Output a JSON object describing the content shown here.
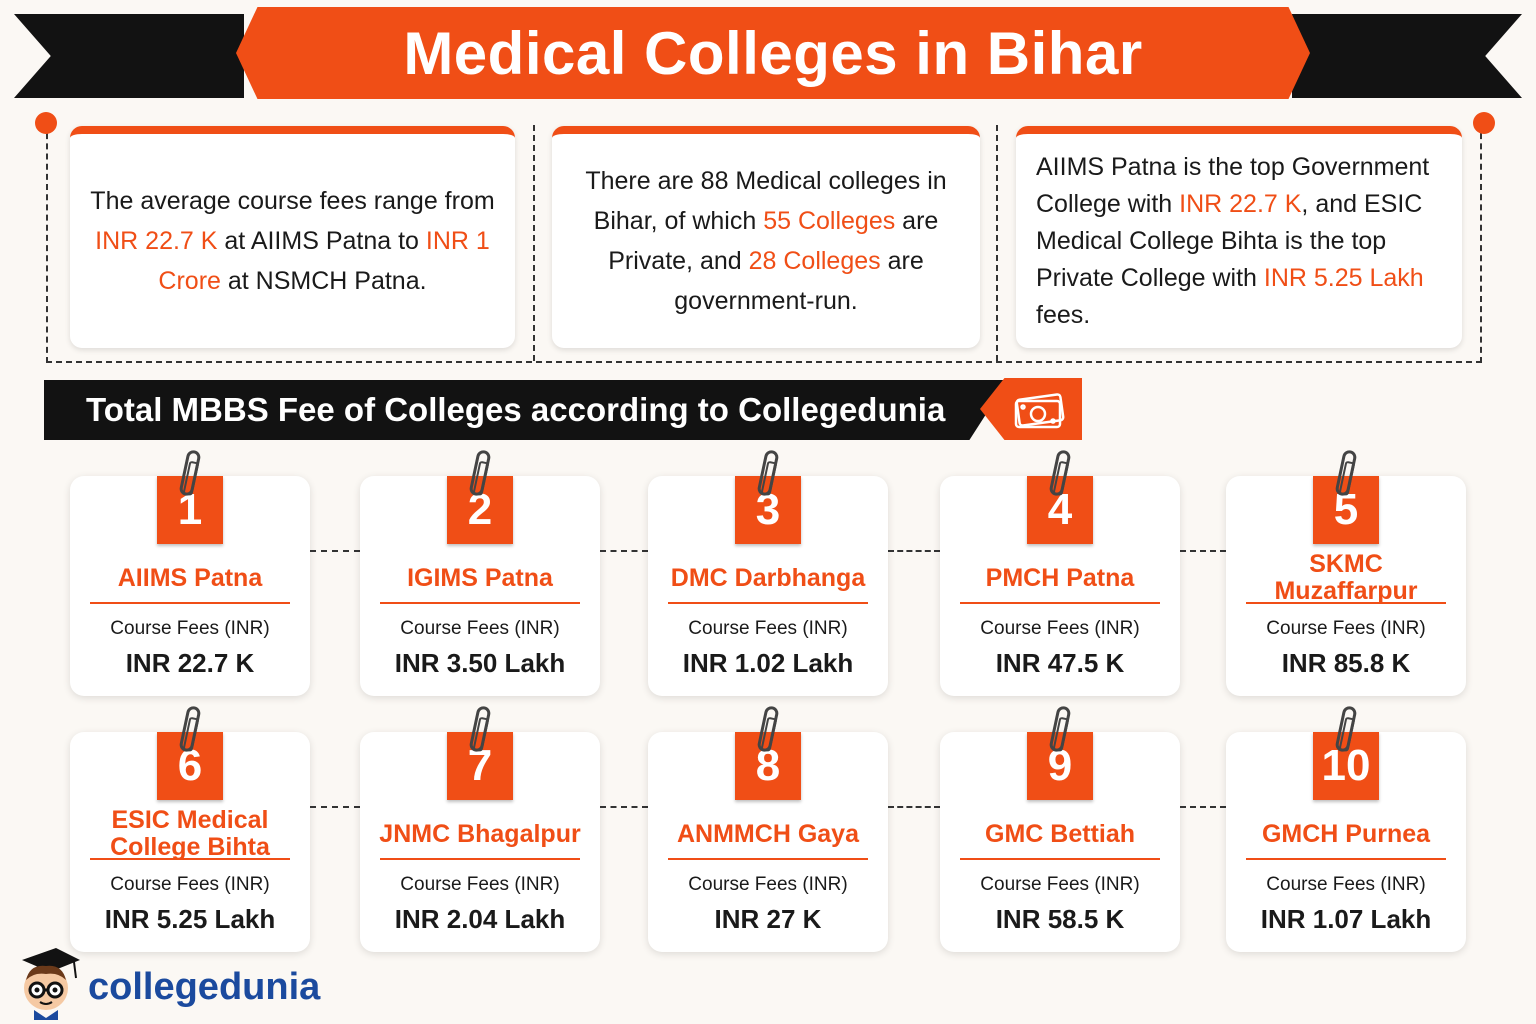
{
  "title": "Medical Colleges in Bihar",
  "info_cards": [
    {
      "segments": [
        {
          "text": "The average course fees range from ",
          "highlight": false
        },
        {
          "text": "INR 22.7 K",
          "highlight": true
        },
        {
          "text": " at AIIMS Patna to ",
          "highlight": false
        },
        {
          "text": "INR 1 Crore",
          "highlight": true
        },
        {
          "text": " at NSMCH Patna.",
          "highlight": false
        }
      ]
    },
    {
      "segments": [
        {
          "text": "There are 88 Medical colleges in Bihar, of which ",
          "highlight": false
        },
        {
          "text": "55 Colleges",
          "highlight": true
        },
        {
          "text": " are Private, and ",
          "highlight": false
        },
        {
          "text": "28 Colleges",
          "highlight": true
        },
        {
          "text": " are government-run.",
          "highlight": false
        }
      ]
    },
    {
      "segments": [
        {
          "text": "AIIMS Patna is the top Government College with ",
          "highlight": false
        },
        {
          "text": "INR 22.7 K",
          "highlight": true
        },
        {
          "text": ", and ESIC Medical College Bihta is the top Private College with ",
          "highlight": false
        },
        {
          "text": "INR 5.25 Lakh",
          "highlight": true
        },
        {
          "text": " fees.",
          "highlight": false
        }
      ]
    }
  ],
  "section_heading": "Total MBBS Fee of Colleges according to Collegedunia",
  "fee_label": "Course Fees (INR)",
  "colleges": [
    {
      "rank": "1",
      "name": "AIIMS Patna",
      "fee": "INR 22.7 K"
    },
    {
      "rank": "2",
      "name": "IGIMS Patna",
      "fee": "INR 3.50 Lakh"
    },
    {
      "rank": "3",
      "name": "DMC Darbhanga",
      "fee": "INR 1.02 Lakh"
    },
    {
      "rank": "4",
      "name": "PMCH Patna",
      "fee": "INR 47.5 K"
    },
    {
      "rank": "5",
      "name": "SKMC Muzaffarpur",
      "fee": "INR 85.8 K"
    },
    {
      "rank": "6",
      "name": "ESIC Medical College Bihta",
      "fee": "INR 5.25 Lakh"
    },
    {
      "rank": "7",
      "name": "JNMC Bhagalpur",
      "fee": "INR 2.04 Lakh"
    },
    {
      "rank": "8",
      "name": "ANMMCH Gaya",
      "fee": "INR 27 K"
    },
    {
      "rank": "9",
      "name": "GMC Bettiah",
      "fee": "INR 58.5 K"
    },
    {
      "rank": "10",
      "name": "GMCH Purnea",
      "fee": "INR 1.07 Lakh"
    }
  ],
  "logo": {
    "text": "collegedunia",
    "icon": "mascot-icon"
  },
  "colors": {
    "accent": "#f04e16",
    "dark": "#121212",
    "brand_blue": "#1b4a9e"
  }
}
